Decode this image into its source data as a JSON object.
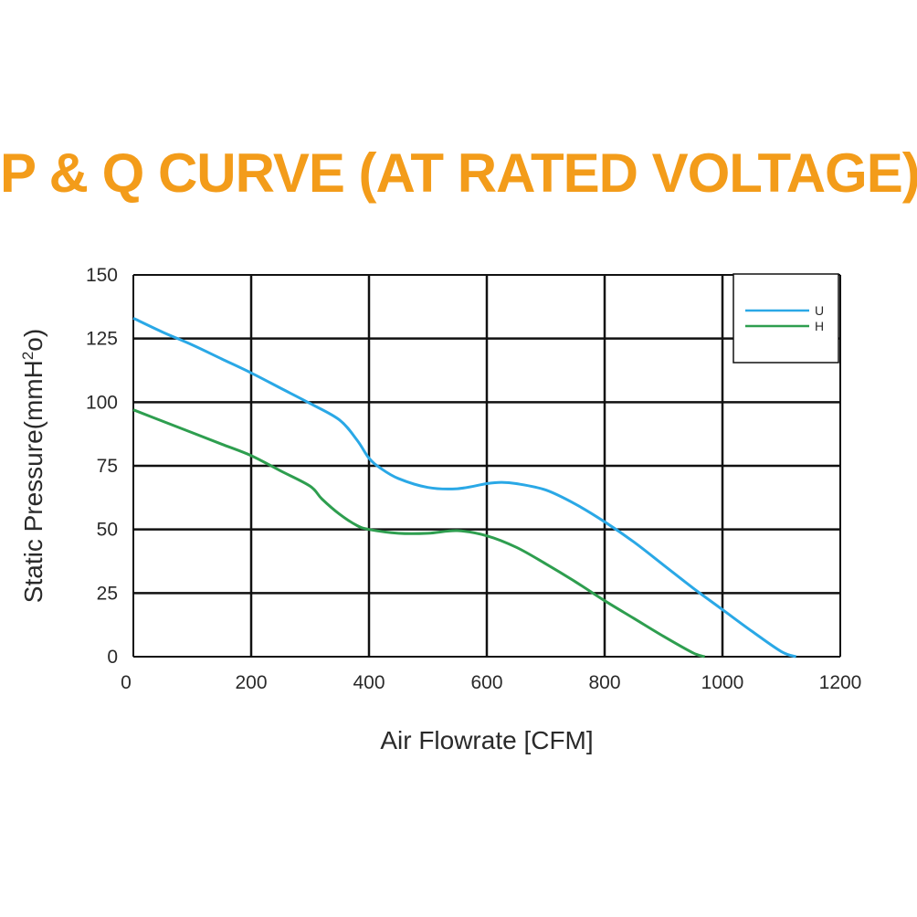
{
  "colors": {
    "title": "#f39c1a",
    "grid": "#111111",
    "series_u": "#2aa8e6",
    "series_h": "#2e9e4f"
  },
  "chart_data": {
    "type": "line",
    "title": "P & Q CURVE (AT RATED VOLTAGE)",
    "xlabel": "Air  Flowrate   [CFM]",
    "ylabel_main": "Static Pressure(mmH",
    "ylabel_sup": "2",
    "ylabel_tail": "o)",
    "xlim": [
      0,
      1200
    ],
    "ylim": [
      0,
      150
    ],
    "x_ticks": [
      "0",
      "200",
      "400",
      "600",
      "800",
      "1000",
      "1200"
    ],
    "y_ticks": [
      "0",
      "25",
      "50",
      "75",
      "100",
      "125",
      "150"
    ],
    "grid": true,
    "legend_position": "top-right",
    "series": [
      {
        "name": "U",
        "color": "#2aa8e6",
        "x": [
          0,
          50,
          100,
          150,
          200,
          250,
          300,
          350,
          380,
          400,
          420,
          450,
          500,
          550,
          600,
          625,
          650,
          700,
          750,
          800,
          850,
          900,
          950,
          1000,
          1050,
          1100,
          1125
        ],
        "y": [
          133,
          127.5,
          122.5,
          117,
          111.5,
          105.5,
          99.5,
          93,
          85,
          78,
          74,
          70,
          66.5,
          66,
          68,
          68.5,
          68,
          65.5,
          60,
          53,
          45,
          36,
          27,
          18.5,
          10,
          2,
          0
        ]
      },
      {
        "name": "H",
        "color": "#2e9e4f",
        "x": [
          0,
          50,
          100,
          150,
          200,
          250,
          300,
          320,
          350,
          380,
          400,
          450,
          500,
          550,
          600,
          650,
          700,
          750,
          800,
          850,
          900,
          950,
          970
        ],
        "y": [
          97,
          92.5,
          88,
          83.5,
          79,
          73,
          67,
          62,
          56,
          51.5,
          50,
          48.5,
          48.5,
          49.5,
          47.5,
          43,
          36.5,
          29.5,
          22,
          15,
          8,
          1.5,
          0
        ]
      }
    ]
  }
}
